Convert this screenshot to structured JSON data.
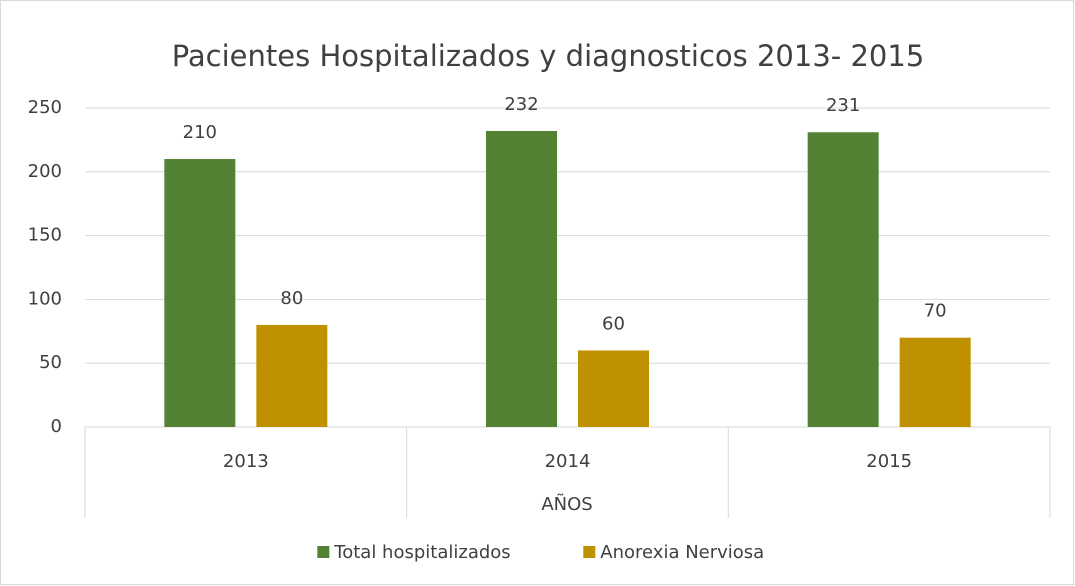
{
  "chart_data": {
    "type": "bar",
    "title": "Pacientes Hospitalizados y diagnosticos 2013- 2015",
    "xlabel": "AÑOS",
    "categories": [
      "2013",
      "2014",
      "2015"
    ],
    "series": [
      {
        "name": "Total hospitalizados",
        "color": "#548235",
        "values": [
          210,
          232,
          231
        ]
      },
      {
        "name": "Anorexia Nerviosa",
        "color": "#bf9000",
        "values": [
          80,
          60,
          70
        ]
      }
    ],
    "ylim": [
      0,
      250
    ],
    "yticks": [
      0,
      50,
      100,
      150,
      200,
      250
    ],
    "grid": true,
    "legend": "bottom"
  }
}
